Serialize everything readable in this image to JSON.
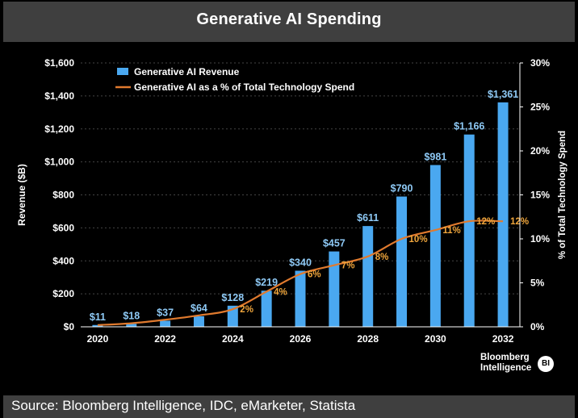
{
  "header": {
    "title": "Generative AI Spending"
  },
  "footer": {
    "source": "Source: Bloomberg Intelligence, IDC, eMarketer, Statista"
  },
  "brand": {
    "line1": "Bloomberg",
    "line2": "Intelligence",
    "logo": "BI"
  },
  "colors": {
    "bar": "#4aa8f0",
    "line": "#e07a2e",
    "bar_label": "#8ec9f5",
    "line_label": "#f0a63c",
    "grid": "#444444"
  },
  "chart_data": {
    "type": "bar",
    "title": "Generative AI Spending",
    "xlabel": "",
    "ylabel": "Revenue ($B)",
    "y2label": "% of Total Technology Spend",
    "ylim": [
      0,
      1600
    ],
    "y2lim": [
      0,
      30
    ],
    "yticks": [
      "$0",
      "$200",
      "$400",
      "$600",
      "$800",
      "$1,000",
      "$1,200",
      "$1,400",
      "$1,600"
    ],
    "y2ticks": [
      "0%",
      "5%",
      "10%",
      "15%",
      "20%",
      "25%",
      "30%"
    ],
    "categories": [
      "2020",
      "2021",
      "2022",
      "2023",
      "2024",
      "2025",
      "2026",
      "2027",
      "2028",
      "2029",
      "2030",
      "2031",
      "2032"
    ],
    "xtick_labels": [
      "2020",
      "2022",
      "2024",
      "2026",
      "2028",
      "2030",
      "2032"
    ],
    "legend_position": "top-left",
    "series": [
      {
        "name": "Generative AI Revenue",
        "kind": "bar",
        "axis": "left",
        "values": [
          11,
          18,
          37,
          64,
          128,
          219,
          340,
          457,
          611,
          790,
          981,
          1166,
          1361
        ],
        "labels": [
          "$11",
          "$18",
          "$37",
          "$64",
          "$128",
          "$219",
          "$340",
          "$457",
          "$611",
          "$790",
          "$981",
          "$1,166",
          "$1,361"
        ]
      },
      {
        "name": "Generative AI as a % of Total Technology Spend",
        "kind": "line",
        "axis": "right",
        "values": [
          0.2,
          0.4,
          0.8,
          1.3,
          2,
          4,
          6,
          7,
          8,
          10,
          11,
          12,
          12
        ],
        "labels": [
          "",
          "",
          "",
          "",
          "2%",
          "4%",
          "6%",
          "7%",
          "8%",
          "10%",
          "11%",
          "12%",
          "12%"
        ]
      }
    ]
  }
}
